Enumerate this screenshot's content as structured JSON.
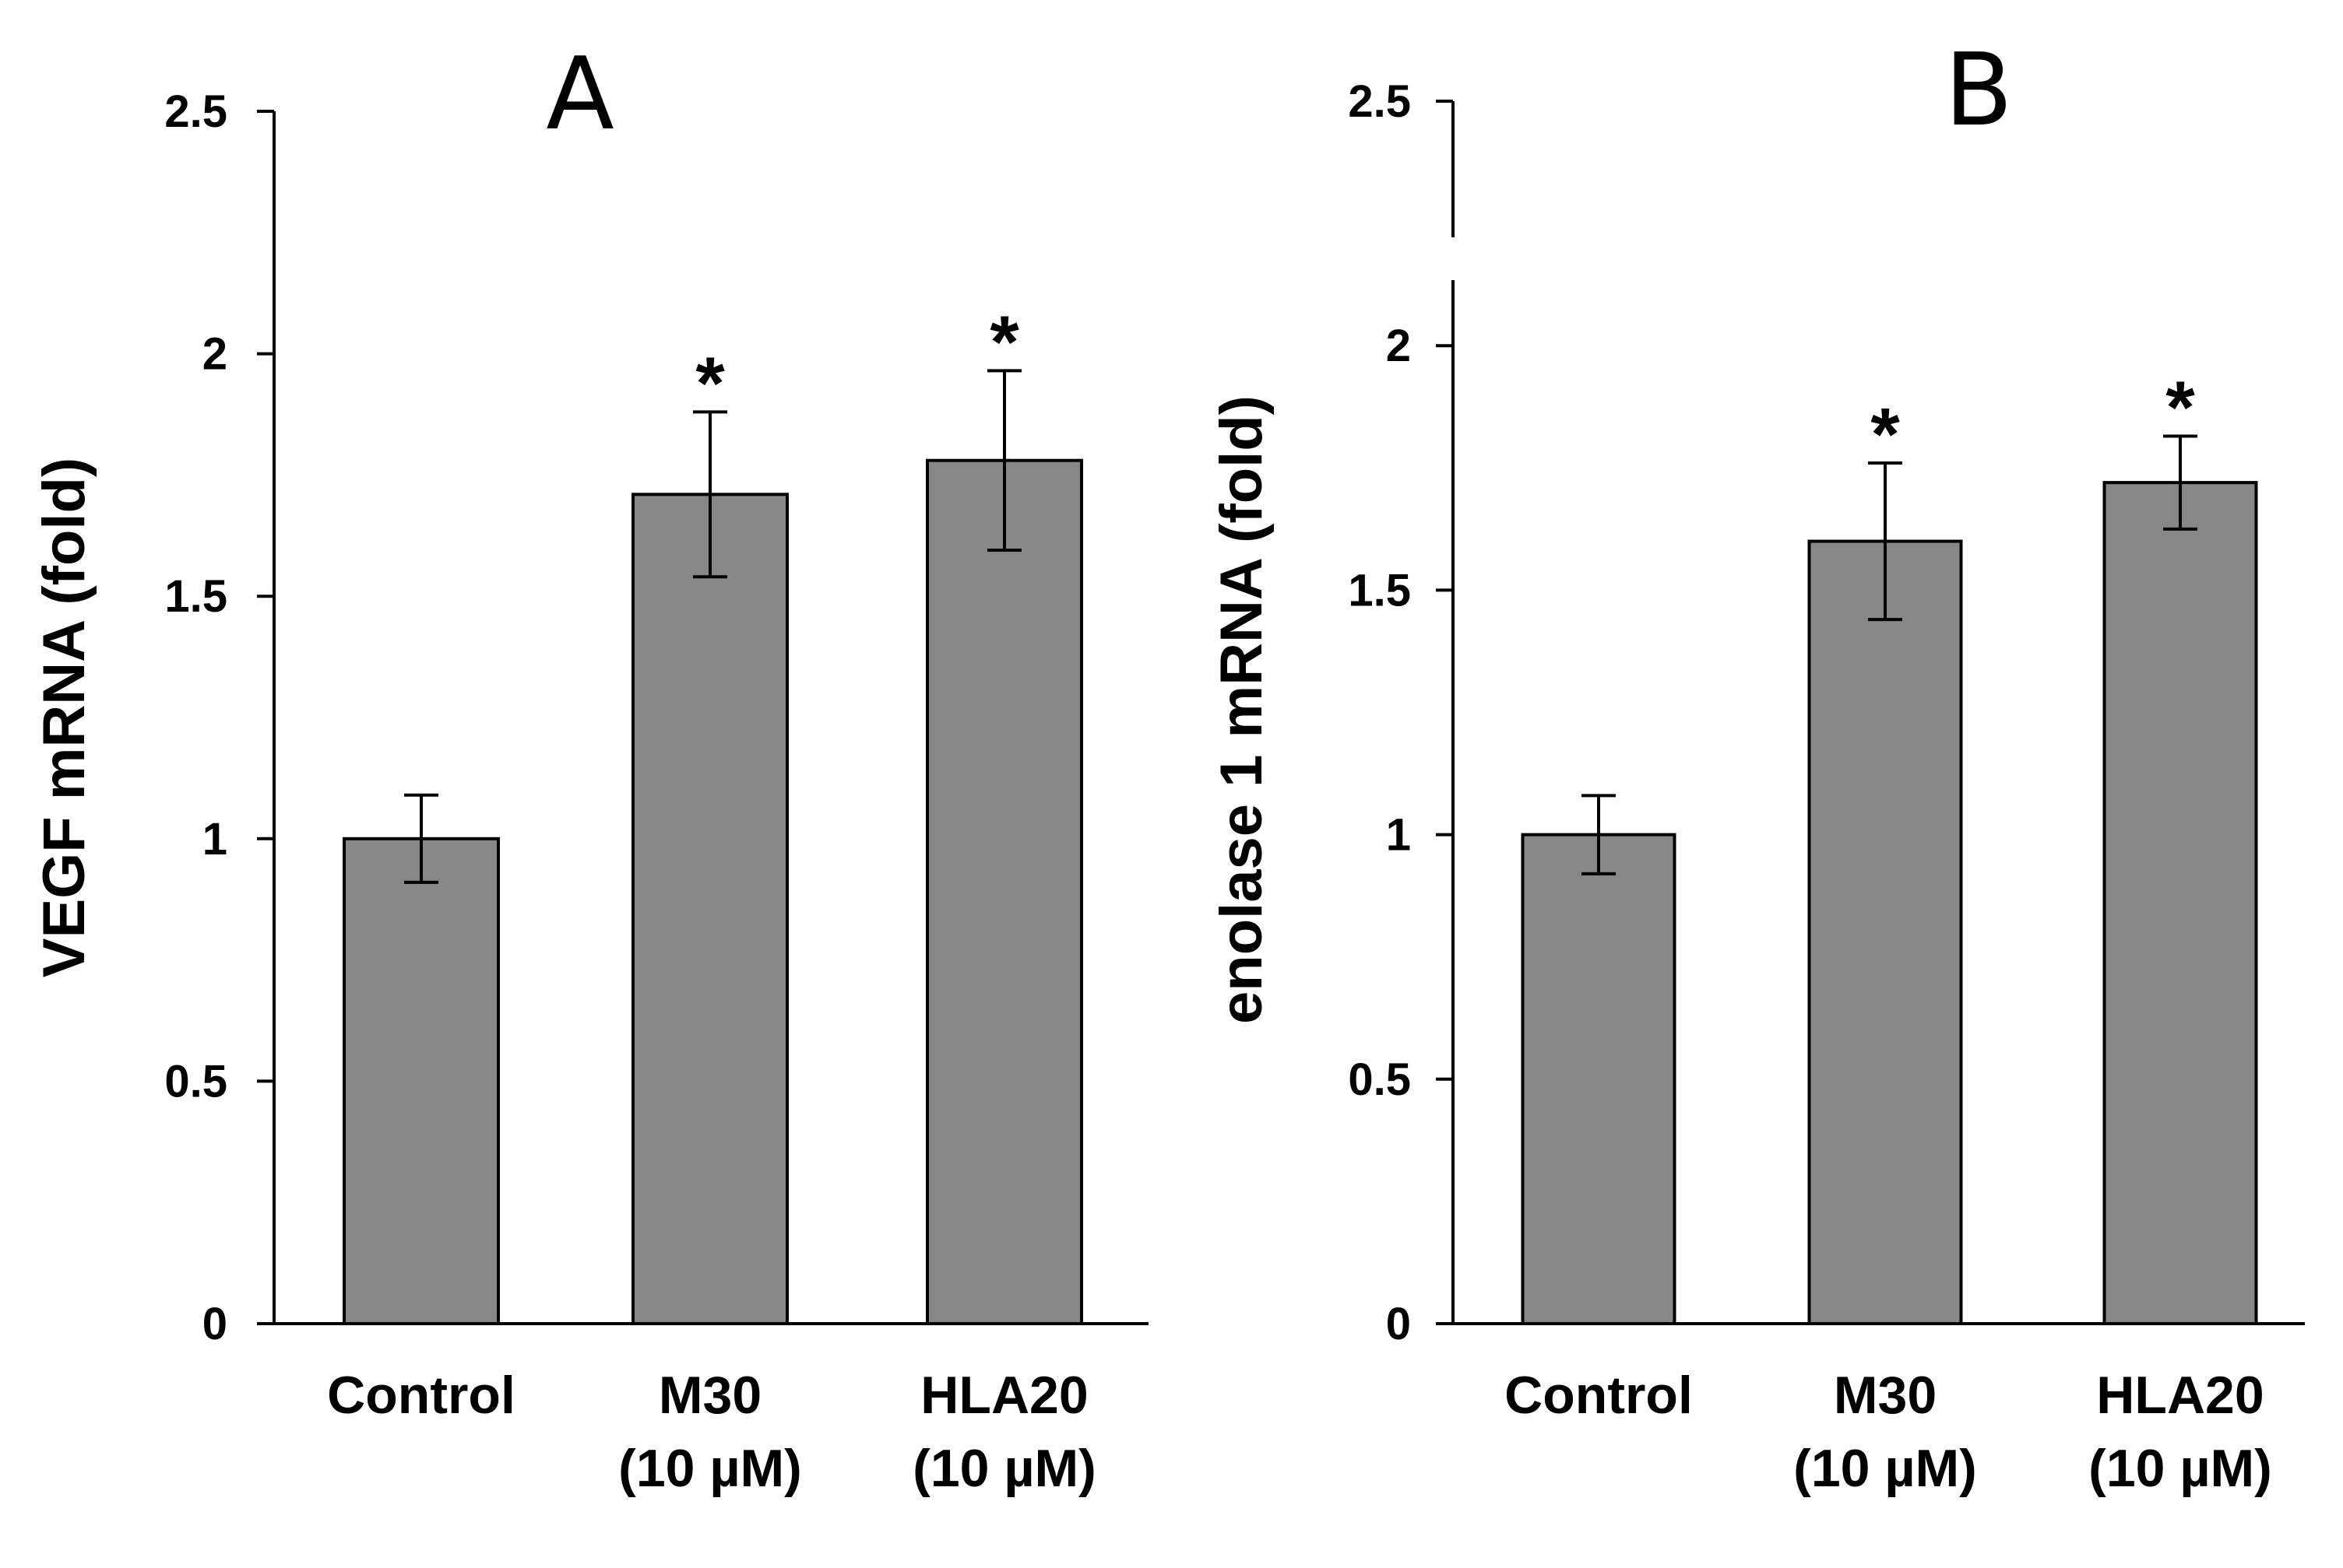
{
  "chart_data": [
    {
      "type": "bar",
      "title": "A",
      "xlabel": "",
      "ylabel": "VEGF mRNA (fold)",
      "ylim": [
        0,
        2.5
      ],
      "yticks": [
        "0",
        "0.5",
        "1",
        "1.5",
        "2",
        "2.5"
      ],
      "categories": [
        [
          "Control"
        ],
        [
          "M30",
          "(10 µM)"
        ],
        [
          "HLA20",
          "(10 µM)"
        ]
      ],
      "values": [
        1.0,
        1.71,
        1.78
      ],
      "errors": [
        0.09,
        0.17,
        0.185
      ],
      "significance": [
        "",
        "*",
        "*"
      ],
      "grid": false,
      "bar_color": "#878787"
    },
    {
      "type": "bar",
      "title": "B",
      "xlabel": "",
      "ylabel": "enolase 1 mRNA (fold)",
      "ylim": [
        0,
        2.5
      ],
      "yticks": [
        "0",
        "0.5",
        "1",
        "1.5",
        "2",
        "2.5"
      ],
      "categories": [
        [
          "Control"
        ],
        [
          "M30",
          "(10 µM)"
        ],
        [
          "HLA20",
          "(10 µM)"
        ]
      ],
      "values": [
        1.0,
        1.6,
        1.72
      ],
      "errors": [
        0.08,
        0.16,
        0.095
      ],
      "significance": [
        "",
        "*",
        "*"
      ],
      "grid": false,
      "bar_color": "#878787"
    }
  ]
}
